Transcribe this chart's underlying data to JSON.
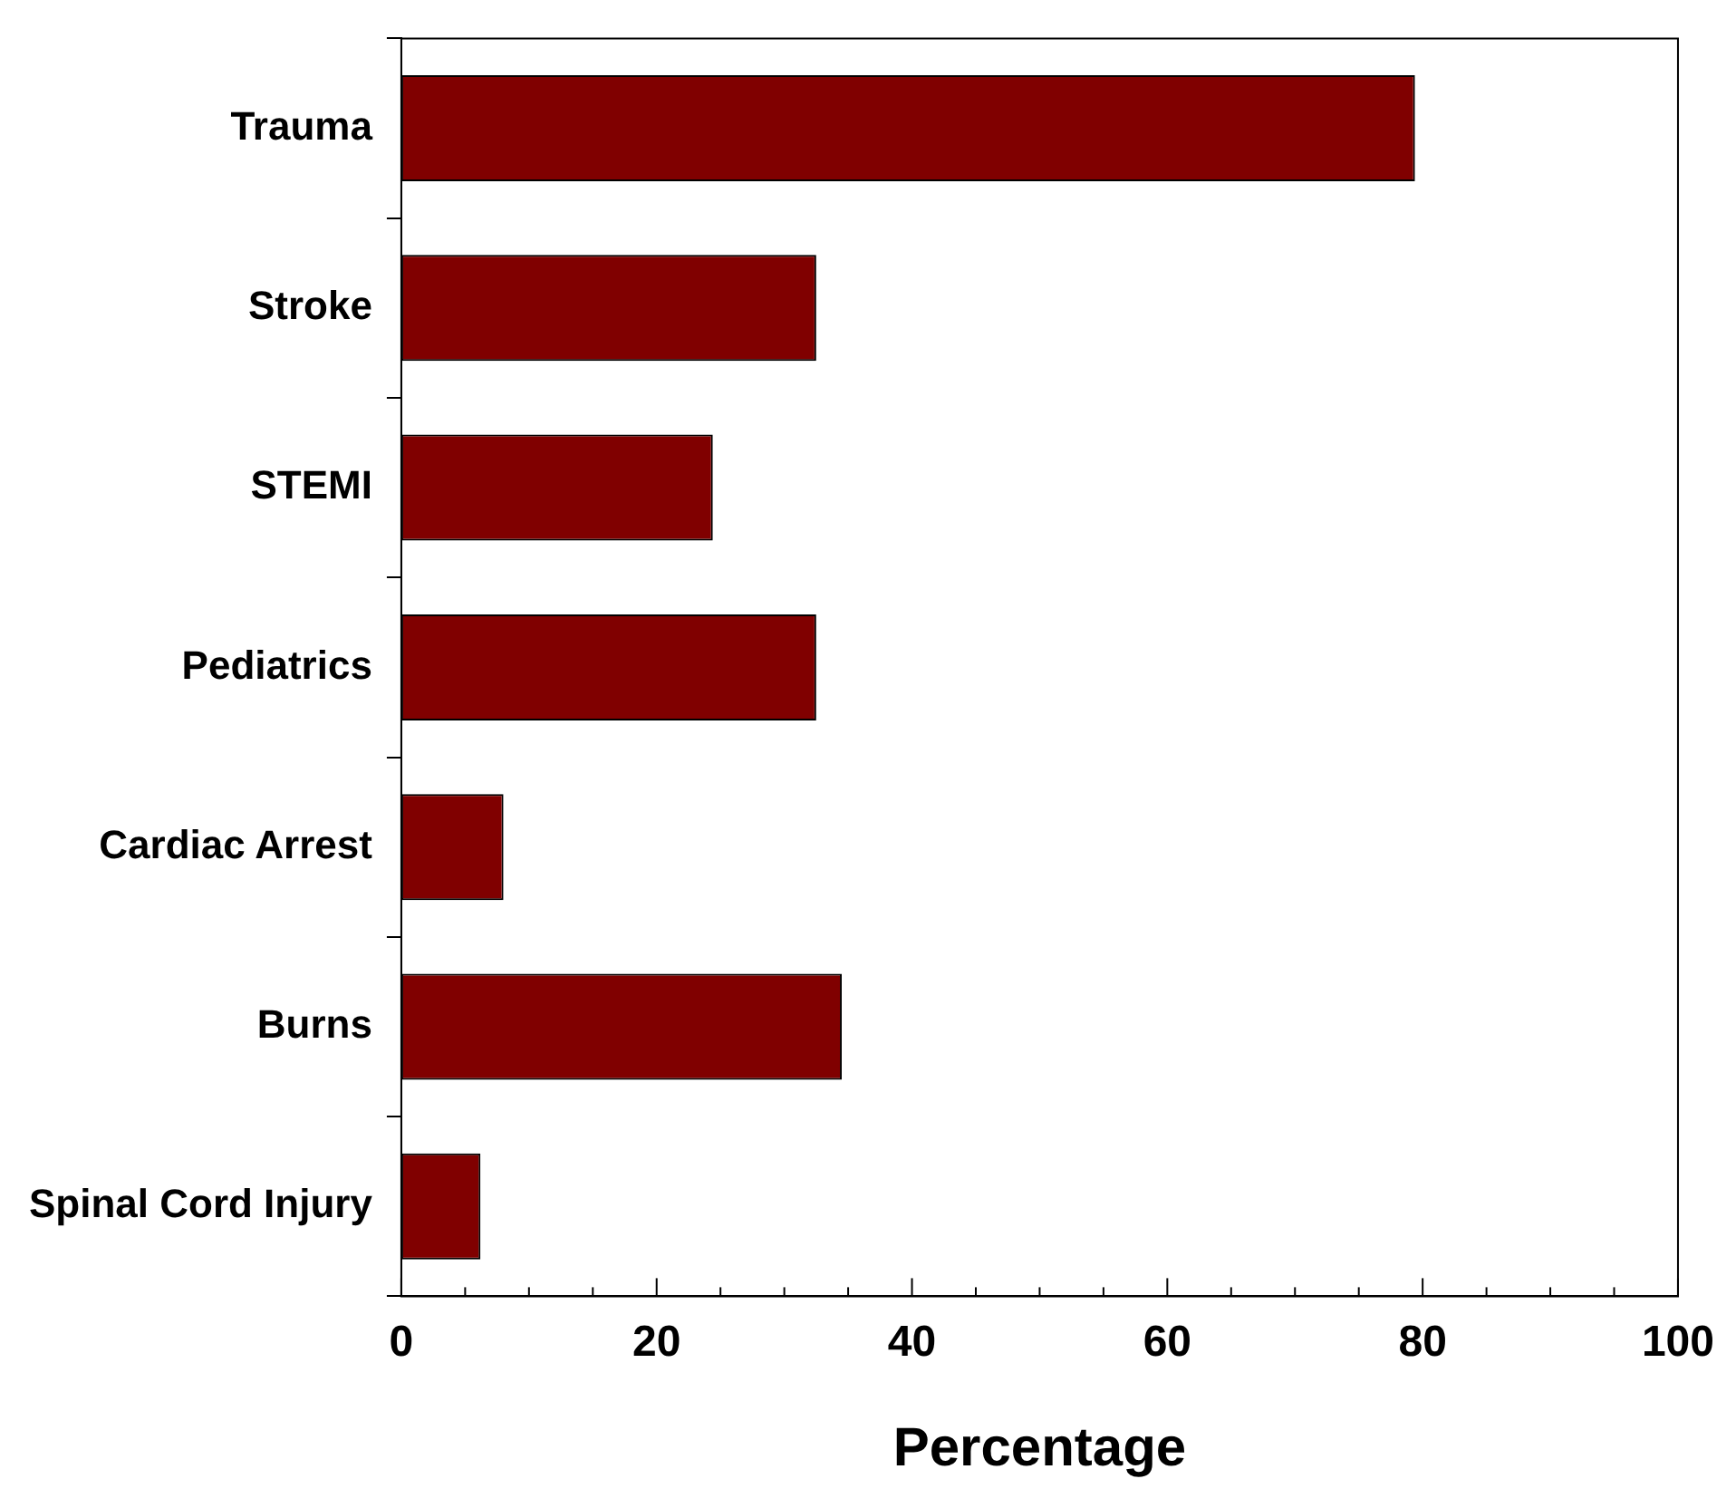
{
  "chart_data": {
    "type": "bar",
    "orientation": "horizontal",
    "xlabel": "Percentage",
    "categories": [
      "Trauma",
      "Stroke",
      "STEMI",
      "Pediatrics",
      "Cardiac Arrest",
      "Burns",
      "Spinal Cord Injury"
    ],
    "values": [
      79.4,
      32.5,
      24.4,
      32.5,
      8.0,
      34.5,
      6.2
    ],
    "color": "#800000",
    "xlim": [
      0,
      100
    ],
    "xticks": [
      0,
      {
        "value": 5,
        "label": null
      },
      {
        "value": 10,
        "label": null
      },
      {
        "value": 15,
        "label": null
      },
      20,
      {
        "value": 25,
        "label": null
      },
      {
        "value": 30,
        "label": null
      },
      {
        "value": 35,
        "label": null
      },
      40,
      {
        "value": 45,
        "label": null
      },
      {
        "value": 50,
        "label": null
      },
      {
        "value": 55,
        "label": null
      },
      60,
      {
        "value": 65,
        "label": null
      },
      {
        "value": 70,
        "label": null
      },
      {
        "value": 75,
        "label": null
      },
      80,
      {
        "value": 85,
        "label": null
      },
      {
        "value": 90,
        "label": null
      },
      {
        "value": 95,
        "label": null
      },
      100
    ],
    "grid": false,
    "legend": false
  }
}
